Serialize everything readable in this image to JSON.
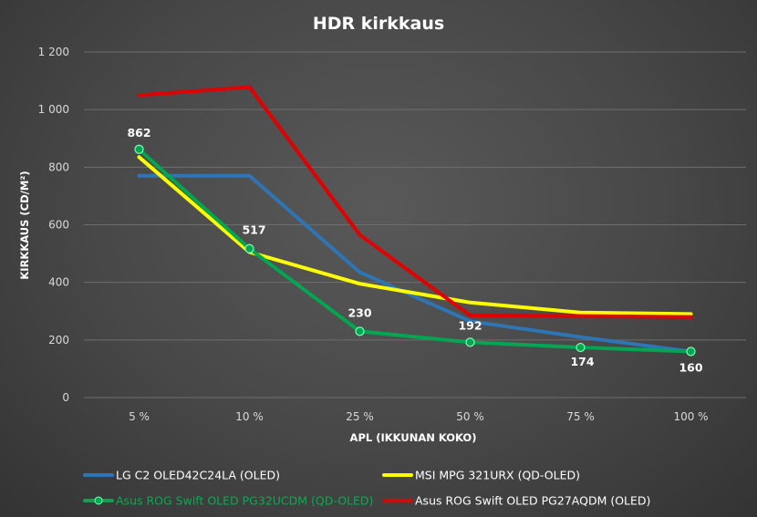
{
  "chart_data": {
    "type": "line",
    "title": "HDR kirkkaus",
    "xlabel": "APL (IKKUNAN KOKO)",
    "ylabel": "KIRKKAUS (CD/M²)",
    "categories": [
      "5 %",
      "10 %",
      "25 %",
      "50 %",
      "75 %",
      "100 %"
    ],
    "ylim": [
      0,
      1200
    ],
    "yticks": [
      0,
      200,
      400,
      600,
      800,
      1000,
      1200
    ],
    "ytick_labels": [
      "0",
      "200",
      "400",
      "600",
      "800",
      "1 000",
      "1 200"
    ],
    "grid": true,
    "legend_position": "bottom",
    "series": [
      {
        "name": "LG C2 OLED42C24LA (OLED)",
        "color": "#2e75b6",
        "values": [
          770,
          770,
          435,
          265,
          210,
          160
        ],
        "markers": false,
        "labels": false,
        "legend_text_color": "#ffffff"
      },
      {
        "name": "MSI MPG 321URX (QD-OLED)",
        "color": "#ffff00",
        "values": [
          835,
          505,
          395,
          330,
          295,
          290
        ],
        "markers": false,
        "labels": false,
        "legend_text_color": "#ffffff"
      },
      {
        "name": "Asus ROG Swift OLED PG32UCDM (QD-OLED)",
        "color": "#00a651",
        "values": [
          862,
          517,
          230,
          192,
          174,
          160
        ],
        "markers": true,
        "labels": true,
        "legend_text_color": "#00b050"
      },
      {
        "name": "Asus ROG Swift OLED PG27AQDM (OLED)",
        "color": "#e00000",
        "values": [
          1050,
          1078,
          565,
          285,
          283,
          280
        ],
        "markers": false,
        "labels": false,
        "legend_text_color": "#ffffff"
      }
    ],
    "data_labels": [
      "862",
      "517",
      "230",
      "192",
      "174",
      "160"
    ]
  }
}
